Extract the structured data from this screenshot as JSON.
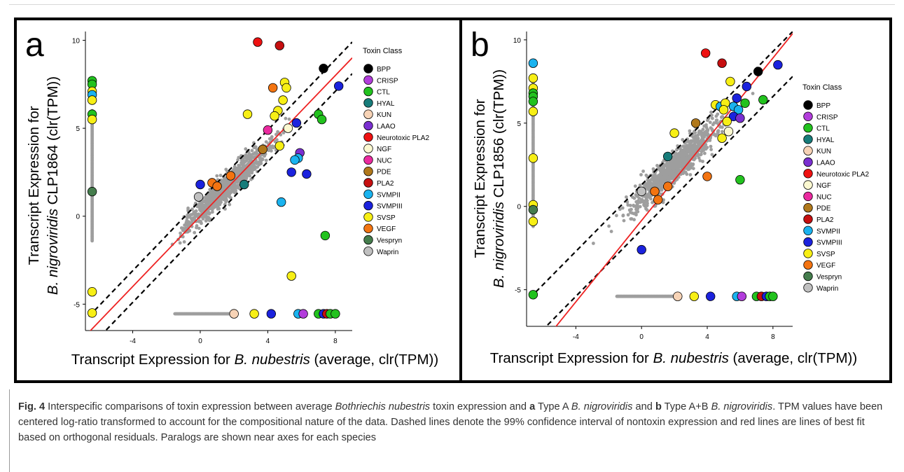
{
  "figure": {
    "legend_title": "Toxin Class",
    "classes": [
      {
        "name": "BPP",
        "color": "#000000"
      },
      {
        "name": "CRISP",
        "color": "#b23ddb"
      },
      {
        "name": "CTL",
        "color": "#22c21e"
      },
      {
        "name": "HYAL",
        "color": "#177c7a"
      },
      {
        "name": "KUN",
        "color": "#f7d3b6"
      },
      {
        "name": "LAAO",
        "color": "#7a2fd0"
      },
      {
        "name": "Neurotoxic PLA2",
        "color": "#ee1111"
      },
      {
        "name": "NGF",
        "color": "#fbf8d0"
      },
      {
        "name": "NUC",
        "color": "#ea2a9f"
      },
      {
        "name": "PDE",
        "color": "#b0781b"
      },
      {
        "name": "PLA2",
        "color": "#c60f10"
      },
      {
        "name": "SVMPII",
        "color": "#1ab3ef"
      },
      {
        "name": "SVMPIII",
        "color": "#1b22dd"
      },
      {
        "name": "SVSP",
        "color": "#f7ef15"
      },
      {
        "name": "VEGF",
        "color": "#f37411"
      },
      {
        "name": "Vespryn",
        "color": "#457d4d"
      },
      {
        "name": "Waprin",
        "color": "#c0c0c0"
      }
    ],
    "nontoxin_color": "#9e9e9e",
    "fit_color": "#ee2222"
  },
  "chart_data": [
    {
      "type": "scatter",
      "panel_label": "a",
      "xlabel_prefix": "Transcript Expression for ",
      "xlabel_species": "B. nubestris",
      "xlabel_suffix": " (average, clr(TPM))",
      "ylabel_prefix": "Transcript Expression for",
      "ylabel_species": "B. nigroviridis",
      "ylabel_suffix": " CLP1864 (clr(TPM))",
      "xlim": [
        -6.8,
        9.0
      ],
      "ylim": [
        -6.5,
        10.5
      ],
      "xticks": [
        -4,
        0,
        4,
        8
      ],
      "yticks": [
        -5,
        0,
        5,
        10
      ],
      "fit_line": {
        "slope": 1.0,
        "intercept": 0.0
      },
      "ci_lines": [
        {
          "slope": 1.0,
          "intercept": 0.9
        },
        {
          "slope": 1.0,
          "intercept": -0.9
        }
      ],
      "nontoxin_cloud": {
        "center_x": 1.6,
        "center_y": 1.7,
        "spread_x": 1.25,
        "spread_y": 1.0
      },
      "nontoxin_paralogs_x_axis": {
        "x_from": -1.5,
        "x_to": 2.0,
        "y": -5.55
      },
      "nontoxin_paralogs_y_axis": {
        "x": -6.4,
        "y_from": -1.4,
        "y_to": 6.0
      },
      "points": [
        {
          "class": "BPP",
          "x": 7.3,
          "y": 8.4
        },
        {
          "class": "Neurotoxic PLA2",
          "x": 3.4,
          "y": 9.9
        },
        {
          "class": "PLA2",
          "x": 4.7,
          "y": 9.7
        },
        {
          "class": "SVMPIII",
          "x": 8.2,
          "y": 7.4
        },
        {
          "class": "SVSP",
          "x": 5.0,
          "y": 7.6
        },
        {
          "class": "SVSP",
          "x": 5.1,
          "y": 7.3
        },
        {
          "class": "VEGF",
          "x": 4.3,
          "y": 7.3
        },
        {
          "class": "SVSP",
          "x": 4.9,
          "y": 6.6
        },
        {
          "class": "SVSP",
          "x": 4.6,
          "y": 6.0
        },
        {
          "class": "SVSP",
          "x": 4.4,
          "y": 5.7
        },
        {
          "class": "CTL",
          "x": 7.0,
          "y": 5.8
        },
        {
          "class": "CTL",
          "x": 7.2,
          "y": 5.5
        },
        {
          "class": "SVSP",
          "x": 2.8,
          "y": 5.8
        },
        {
          "class": "NGF",
          "x": 5.2,
          "y": 5.0
        },
        {
          "class": "NUC",
          "x": 4.0,
          "y": 4.9
        },
        {
          "class": "SVMPIII",
          "x": 5.7,
          "y": 5.3
        },
        {
          "class": "SVSP",
          "x": 4.7,
          "y": 4.0
        },
        {
          "class": "PDE",
          "x": 3.7,
          "y": 3.8
        },
        {
          "class": "LAAO",
          "x": 5.9,
          "y": 3.6
        },
        {
          "class": "SVMPII",
          "x": 5.8,
          "y": 3.3
        },
        {
          "class": "SVMPII",
          "x": 5.6,
          "y": 3.2
        },
        {
          "class": "SVMPIII",
          "x": 5.4,
          "y": 2.5
        },
        {
          "class": "SVMPIII",
          "x": 6.3,
          "y": 2.4
        },
        {
          "class": "VEGF",
          "x": 1.8,
          "y": 2.3
        },
        {
          "class": "HYAL",
          "x": 2.6,
          "y": 1.8
        },
        {
          "class": "VEGF",
          "x": 0.7,
          "y": 1.9
        },
        {
          "class": "VEGF",
          "x": 1.0,
          "y": 1.7
        },
        {
          "class": "SVMPIII",
          "x": 0.0,
          "y": 1.8
        },
        {
          "class": "Waprin",
          "x": -0.1,
          "y": 1.1
        },
        {
          "class": "SVMPII",
          "x": 4.8,
          "y": 0.8
        },
        {
          "class": "CTL",
          "x": 7.4,
          "y": -1.1
        },
        {
          "class": "SVSP",
          "x": 5.4,
          "y": -3.4
        },
        {
          "class": "CTL",
          "x": -6.4,
          "y": 7.7
        },
        {
          "class": "CTL",
          "x": -6.4,
          "y": 7.5
        },
        {
          "class": "SVSP",
          "x": -6.4,
          "y": 7.1
        },
        {
          "class": "SVMPII",
          "x": -6.4,
          "y": 6.9
        },
        {
          "class": "SVSP",
          "x": -6.4,
          "y": 6.6
        },
        {
          "class": "CTL",
          "x": -6.4,
          "y": 5.8
        },
        {
          "class": "SVSP",
          "x": -6.4,
          "y": 5.5
        },
        {
          "class": "Vespryn",
          "x": -6.4,
          "y": 1.4
        },
        {
          "class": "SVSP",
          "x": -6.4,
          "y": -4.3
        },
        {
          "class": "SVSP",
          "x": -6.4,
          "y": -5.5
        },
        {
          "class": "KUN",
          "x": 2.0,
          "y": -5.55
        },
        {
          "class": "SVSP",
          "x": 3.2,
          "y": -5.55
        },
        {
          "class": "SVMPIII",
          "x": 4.2,
          "y": -5.55
        },
        {
          "class": "SVMPII",
          "x": 5.8,
          "y": -5.55
        },
        {
          "class": "CRISP",
          "x": 6.1,
          "y": -5.55
        },
        {
          "class": "CTL",
          "x": 7.0,
          "y": -5.55
        },
        {
          "class": "SVMPIII",
          "x": 7.3,
          "y": -5.55
        },
        {
          "class": "PLA2",
          "x": 7.5,
          "y": -5.55
        },
        {
          "class": "CTL",
          "x": 7.7,
          "y": -5.55
        },
        {
          "class": "CTL",
          "x": 8.0,
          "y": -5.55
        }
      ]
    },
    {
      "type": "scatter",
      "panel_label": "b",
      "xlabel_prefix": "Transcript Expression for ",
      "xlabel_species": "B. nubestris",
      "xlabel_suffix": " (average, clr(TPM))",
      "ylabel_prefix": "Transcript Expression for",
      "ylabel_species": "B. nigroviridis",
      "ylabel_suffix": " CLP1856 (clr(TPM))",
      "xlim": [
        -7.0,
        9.2
      ],
      "ylim": [
        -7.2,
        10.5
      ],
      "xticks": [
        -4,
        0,
        4,
        8
      ],
      "yticks": [
        -5,
        0,
        5,
        10
      ],
      "fit_line": {
        "slope": 1.22,
        "intercept": -0.85
      },
      "ci_lines": [
        {
          "slope": 1.0,
          "intercept": 1.3
        },
        {
          "slope": 1.0,
          "intercept": -1.4
        }
      ],
      "nontoxin_cloud": {
        "center_x": 2.0,
        "center_y": 2.4,
        "spread_x": 1.35,
        "spread_y": 1.25
      },
      "nontoxin_paralogs_x_axis": {
        "x_from": -1.5,
        "x_to": 2.2,
        "y": -5.4
      },
      "nontoxin_paralogs_y_axis": {
        "x": -6.6,
        "y_from": -1.2,
        "y_to": 7.5
      },
      "points": [
        {
          "class": "SVMPIII",
          "x": 8.3,
          "y": 8.5
        },
        {
          "class": "BPP",
          "x": 7.1,
          "y": 8.1
        },
        {
          "class": "Neurotoxic PLA2",
          "x": 3.9,
          "y": 9.2
        },
        {
          "class": "PLA2",
          "x": 4.9,
          "y": 8.6
        },
        {
          "class": "SVSP",
          "x": 5.4,
          "y": 7.5
        },
        {
          "class": "SVMPIII",
          "x": 6.4,
          "y": 7.2
        },
        {
          "class": "CTL",
          "x": 7.4,
          "y": 6.4
        },
        {
          "class": "SVMPIII",
          "x": 5.8,
          "y": 6.5
        },
        {
          "class": "SVSP",
          "x": 4.5,
          "y": 6.1
        },
        {
          "class": "SVMPII",
          "x": 4.8,
          "y": 6.0
        },
        {
          "class": "SVMPII",
          "x": 5.6,
          "y": 6.0
        },
        {
          "class": "SVSP",
          "x": 5.1,
          "y": 6.2
        },
        {
          "class": "CTL",
          "x": 6.3,
          "y": 6.2
        },
        {
          "class": "SVMPII",
          "x": 5.9,
          "y": 5.8
        },
        {
          "class": "SVSP",
          "x": 5.0,
          "y": 5.8
        },
        {
          "class": "SVMPIII",
          "x": 5.6,
          "y": 5.4
        },
        {
          "class": "LAAO",
          "x": 6.0,
          "y": 5.3
        },
        {
          "class": "SVSP",
          "x": 5.2,
          "y": 5.1
        },
        {
          "class": "NGF",
          "x": 5.3,
          "y": 4.5
        },
        {
          "class": "SVSP",
          "x": 4.9,
          "y": 4.1
        },
        {
          "class": "PDE",
          "x": 3.3,
          "y": 5.0
        },
        {
          "class": "SVSP",
          "x": 2.0,
          "y": 4.4
        },
        {
          "class": "HYAL",
          "x": 1.6,
          "y": 3.0
        },
        {
          "class": "VEGF",
          "x": 4.0,
          "y": 1.8
        },
        {
          "class": "CTL",
          "x": 6.0,
          "y": 1.6
        },
        {
          "class": "VEGF",
          "x": 1.6,
          "y": 1.2
        },
        {
          "class": "VEGF",
          "x": 0.8,
          "y": 0.9
        },
        {
          "class": "VEGF",
          "x": 1.0,
          "y": 0.4
        },
        {
          "class": "Waprin",
          "x": 0.0,
          "y": 0.9
        },
        {
          "class": "SVMPIII",
          "x": 0.0,
          "y": -2.6
        },
        {
          "class": "SVMPII",
          "x": -6.6,
          "y": 8.6
        },
        {
          "class": "SVSP",
          "x": -6.6,
          "y": 7.7
        },
        {
          "class": "SVSP",
          "x": -6.6,
          "y": 7.1
        },
        {
          "class": "CTL",
          "x": -6.6,
          "y": 6.8
        },
        {
          "class": "CTL",
          "x": -6.6,
          "y": 6.6
        },
        {
          "class": "CTL",
          "x": -6.6,
          "y": 6.3
        },
        {
          "class": "SVSP",
          "x": -6.6,
          "y": 5.7
        },
        {
          "class": "SVSP",
          "x": -6.6,
          "y": 2.9
        },
        {
          "class": "SVSP",
          "x": -6.6,
          "y": 0.1
        },
        {
          "class": "Vespryn",
          "x": -6.6,
          "y": -0.2
        },
        {
          "class": "SVSP",
          "x": -6.6,
          "y": -0.9
        },
        {
          "class": "CTL",
          "x": -6.6,
          "y": -5.3
        },
        {
          "class": "KUN",
          "x": 2.2,
          "y": -5.4
        },
        {
          "class": "SVSP",
          "x": 3.2,
          "y": -5.4
        },
        {
          "class": "SVMPIII",
          "x": 4.2,
          "y": -5.4
        },
        {
          "class": "SVMPII",
          "x": 5.8,
          "y": -5.4
        },
        {
          "class": "CRISP",
          "x": 6.1,
          "y": -5.4
        },
        {
          "class": "CTL",
          "x": 7.0,
          "y": -5.4
        },
        {
          "class": "PLA2",
          "x": 7.3,
          "y": -5.4
        },
        {
          "class": "SVMPIII",
          "x": 7.6,
          "y": -5.4
        },
        {
          "class": "CTL",
          "x": 7.8,
          "y": -5.4
        },
        {
          "class": "CTL",
          "x": 8.0,
          "y": -5.4
        }
      ]
    }
  ],
  "caption": {
    "fig_label": "Fig. 4",
    "t1": " Interspecific comparisons of toxin expression between average ",
    "species1": "Bothriechis nubestris",
    "t2": " toxin expression and ",
    "label_a": "a",
    "t3": " Type A ",
    "species2": "B. nigroviridis",
    "t4": " and ",
    "label_b": "b",
    "t5": " Type A+B ",
    "species3": "B. nigroviridis",
    "t6": ". TPM values have been centered log-ratio transformed to account for the compositional nature of the data. Dashed lines denote the 99% confidence interval of nontoxin expression and red lines are lines of best fit based on orthogonal residuals. Paralogs are shown near axes for each species"
  }
}
